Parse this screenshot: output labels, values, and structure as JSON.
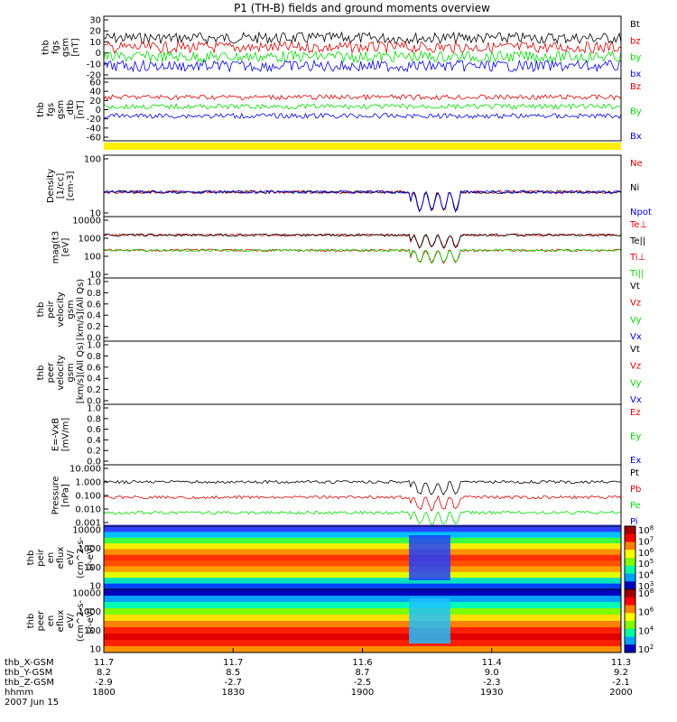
{
  "title": "P1 (TH-B) fields and ground moments overview",
  "colors": {
    "black": "#000000",
    "red": "#e00000",
    "green": "#00dd00",
    "blue": "#0000ee",
    "yellow": "#ffee00"
  },
  "chart_data": {
    "type": "line",
    "x_axis": {
      "ticks": [
        "1800",
        "1830",
        "1900",
        "1930",
        "2000"
      ],
      "extra_rows": [
        {
          "label": "thb_X-GSM",
          "values": [
            "11.7",
            "11.7",
            "11.6",
            "11.4",
            "11.3"
          ]
        },
        {
          "label": "thb_Y-GSM",
          "values": [
            "8.2",
            "8.5",
            "8.7",
            "9.0",
            "9.2"
          ]
        },
        {
          "label": "thb_Z-GSM",
          "values": [
            "-2.9",
            "-2.7",
            "-2.5",
            "-2.3",
            "-2.1"
          ]
        },
        {
          "label": "hhmm",
          "values": []
        }
      ],
      "date": "2007 Jun 15"
    },
    "panels": [
      {
        "ylabel": [
          "thb",
          "fgs",
          "gsm",
          "[nT]"
        ],
        "yticks": [
          "30",
          "20",
          "10",
          "0",
          "-10",
          "-20"
        ],
        "legend": [
          {
            "name": "Bt",
            "color": "black"
          },
          {
            "name": "bz",
            "color": "red"
          },
          {
            "name": "by",
            "color": "green"
          },
          {
            "name": "bx",
            "color": "blue"
          }
        ]
      },
      {
        "ylabel": [
          "thb",
          "fgs",
          "gsm",
          "_dtb",
          "[nT]"
        ],
        "yticks": [
          "60",
          "40",
          "20",
          "0",
          "-20",
          "-40",
          "-60"
        ],
        "legend": [
          {
            "name": "Bz",
            "color": "red"
          },
          {
            "name": "By",
            "color": "green"
          },
          {
            "name": "Bx",
            "color": "blue"
          }
        ]
      },
      {
        "ylabel": [
          "Density",
          "[1/cc]",
          "[cm-3]"
        ],
        "yticks": [
          "100",
          "10"
        ],
        "legend": [
          {
            "name": "Ne",
            "color": "red"
          },
          {
            "name": "Ni",
            "color": "black"
          },
          {
            "name": "Npot",
            "color": "blue"
          }
        ]
      },
      {
        "ylabel": [
          "mag(t3",
          "[eV]"
        ],
        "yticks": [
          "10000",
          "1000",
          "100",
          "10"
        ],
        "legend": [
          {
            "name": "Te⊥",
            "color": "red"
          },
          {
            "name": "Te||",
            "color": "black"
          },
          {
            "name": "Ti⊥",
            "color": "red"
          },
          {
            "name": "Ti||",
            "color": "green"
          }
        ]
      },
      {
        "ylabel": [
          "thb",
          "peir",
          "velocity",
          "gsm",
          "[km/s](All Qs)"
        ],
        "yticks": [
          "1.0",
          "0.8",
          "0.6",
          "0.4",
          "0.2",
          "0.0"
        ],
        "legend": [
          {
            "name": "Vt",
            "color": "black"
          },
          {
            "name": "Vz",
            "color": "red"
          },
          {
            "name": "Vy",
            "color": "green"
          },
          {
            "name": "Vx",
            "color": "blue"
          }
        ]
      },
      {
        "ylabel": [
          "thb",
          "peer",
          "velocity",
          "gsm",
          "[km/s](All Qs)"
        ],
        "yticks": [
          "1.0",
          "0.8",
          "0.6",
          "0.4",
          "0.2",
          "0.0"
        ],
        "legend": [
          {
            "name": "Vt",
            "color": "black"
          },
          {
            "name": "Vz",
            "color": "red"
          },
          {
            "name": "Vy",
            "color": "green"
          },
          {
            "name": "Vx",
            "color": "blue"
          }
        ]
      },
      {
        "ylabel": [
          "E=-VxB",
          "[mV/m]"
        ],
        "yticks": [
          "1.0",
          "0.8",
          "0.6",
          "0.4",
          "0.2",
          "0.0"
        ],
        "legend": [
          {
            "name": "Ez",
            "color": "red"
          },
          {
            "name": "Ey",
            "color": "green"
          },
          {
            "name": "Ex",
            "color": "blue"
          }
        ]
      },
      {
        "ylabel": [
          "Pressure",
          "[nPa]"
        ],
        "yticks": [
          "10.000",
          "1.000",
          "0.100",
          "0.010",
          "0.001"
        ],
        "legend": [
          {
            "name": "Pt",
            "color": "black"
          },
          {
            "name": "Pb",
            "color": "red"
          },
          {
            "name": "Pe",
            "color": "green"
          },
          {
            "name": "Pi",
            "color": "blue"
          }
        ]
      },
      {
        "ylabel": [
          "thb",
          "peir",
          "en",
          "eflux",
          "eV/",
          "(cm^2-s-",
          "sr-eV)"
        ],
        "yticks": [
          "10000",
          "1000",
          "100",
          "10"
        ],
        "colorbar": [
          "10^8",
          "10^7",
          "10^6",
          "10^5",
          "10^4",
          "10^3"
        ]
      },
      {
        "ylabel": [
          "thb",
          "peer",
          "en",
          "eflux",
          "eV/",
          "(cm^2-s-",
          "sr-eV)"
        ],
        "yticks": [
          "10000",
          "1000",
          "100",
          "10"
        ],
        "colorbar": [
          "10^8",
          "10^6",
          "10^4",
          "10^2"
        ]
      }
    ]
  }
}
